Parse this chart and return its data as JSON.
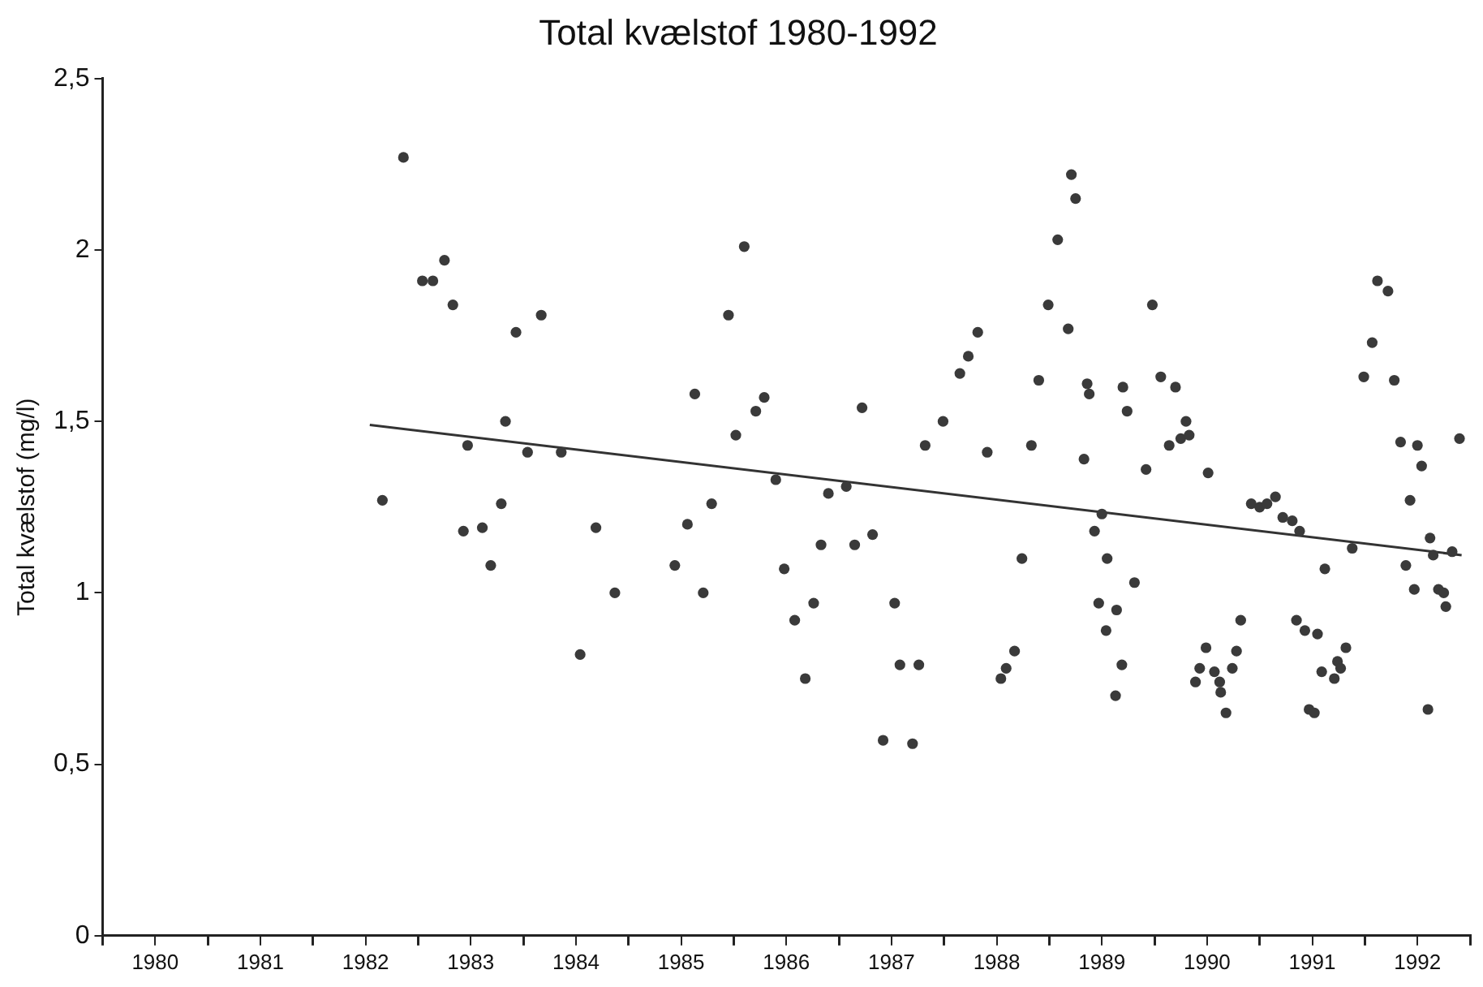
{
  "chart_data": {
    "type": "scatter",
    "title": "Total kvælstof 1980-1992",
    "ylabel": "Total kvælstof (mg/l)",
    "xlim": [
      1980,
      1993
    ],
    "xticks": [
      {
        "value": 1980,
        "label": null
      },
      {
        "value": 1980.5,
        "label": "1980"
      },
      {
        "value": 1981,
        "label": null
      },
      {
        "value": 1981.5,
        "label": "1981"
      },
      {
        "value": 1982,
        "label": null
      },
      {
        "value": 1982.5,
        "label": "1982"
      },
      {
        "value": 1983,
        "label": null
      },
      {
        "value": 1983.5,
        "label": "1983"
      },
      {
        "value": 1984,
        "label": null
      },
      {
        "value": 1984.5,
        "label": "1984"
      },
      {
        "value": 1985,
        "label": null
      },
      {
        "value": 1985.5,
        "label": "1985"
      },
      {
        "value": 1986,
        "label": null
      },
      {
        "value": 1986.5,
        "label": "1986"
      },
      {
        "value": 1987,
        "label": null
      },
      {
        "value": 1987.5,
        "label": "1987"
      },
      {
        "value": 1988,
        "label": null
      },
      {
        "value": 1988.5,
        "label": "1988"
      },
      {
        "value": 1989,
        "label": null
      },
      {
        "value": 1989.5,
        "label": "1989"
      },
      {
        "value": 1990,
        "label": null
      },
      {
        "value": 1990.5,
        "label": "1990"
      },
      {
        "value": 1991,
        "label": null
      },
      {
        "value": 1991.5,
        "label": "1991"
      },
      {
        "value": 1992,
        "label": null
      },
      {
        "value": 1992.5,
        "label": "1992"
      },
      {
        "value": 1993,
        "label": null
      }
    ],
    "ylim": [
      0,
      2.5
    ],
    "yticks": [
      0,
      {
        "value": 0.5,
        "label": "0,5"
      },
      1,
      {
        "value": 1.5,
        "label": "1,5"
      },
      2,
      {
        "value": 2.5,
        "label": "2,5"
      }
    ],
    "grid": false,
    "legend": false,
    "marker": "circle",
    "series": [
      {
        "color": "#3a3a3a",
        "x": [
          1982.66,
          1982.86,
          1983.04,
          1983.14,
          1983.25,
          1983.33,
          1983.43,
          1983.47,
          1983.61,
          1983.69,
          1983.79,
          1983.83,
          1983.93,
          1984.04,
          1984.17,
          1984.36,
          1984.54,
          1984.69,
          1984.87,
          1985.44,
          1985.56,
          1985.63,
          1985.71,
          1985.79,
          1985.95,
          1986.02,
          1986.1,
          1986.21,
          1986.29,
          1986.4,
          1986.48,
          1986.58,
          1986.68,
          1986.76,
          1986.83,
          1986.9,
          1987.07,
          1987.15,
          1987.22,
          1987.32,
          1987.42,
          1987.53,
          1987.58,
          1987.7,
          1987.76,
          1987.82,
          1987.99,
          1988.15,
          1988.23,
          1988.32,
          1988.41,
          1988.54,
          1988.59,
          1988.67,
          1988.74,
          1988.83,
          1988.9,
          1988.99,
          1989.08,
          1989.18,
          1989.21,
          1989.25,
          1989.33,
          1989.36,
          1989.38,
          1989.43,
          1989.5,
          1989.47,
          1989.54,
          1989.55,
          1989.64,
          1989.69,
          1989.63,
          1989.7,
          1989.74,
          1989.81,
          1989.92,
          1989.98,
          1990.06,
          1990.14,
          1990.2,
          1990.25,
          1990.3,
          1990.33,
          1990.39,
          1990.43,
          1990.49,
          1990.51,
          1990.57,
          1990.62,
          1990.63,
          1990.68,
          1990.74,
          1990.78,
          1990.82,
          1990.92,
          1991.0,
          1991.07,
          1991.15,
          1991.22,
          1991.31,
          1991.35,
          1991.38,
          1991.43,
          1991.47,
          1991.52,
          1991.55,
          1991.59,
          1991.62,
          1991.71,
          1991.74,
          1991.77,
          1991.82,
          1991.88,
          1991.99,
          1992.07,
          1992.12,
          1992.22,
          1992.28,
          1992.34,
          1992.39,
          1992.43,
          1992.47,
          1992.5,
          1992.54,
          1992.6,
          1992.62,
          1992.65,
          1992.7,
          1992.75,
          1992.77,
          1992.83,
          1992.9
        ],
        "values": [
          1.27,
          2.27,
          1.91,
          1.91,
          1.97,
          1.84,
          1.18,
          1.43,
          1.19,
          1.08,
          1.26,
          1.5,
          1.76,
          1.41,
          1.81,
          1.41,
          0.82,
          1.19,
          1.0,
          1.08,
          1.2,
          1.58,
          1.0,
          1.26,
          1.81,
          1.46,
          2.01,
          1.53,
          1.57,
          1.33,
          1.07,
          0.92,
          0.75,
          0.97,
          1.14,
          1.29,
          1.31,
          1.14,
          1.54,
          1.17,
          0.57,
          0.97,
          0.79,
          0.56,
          0.79,
          1.43,
          1.5,
          1.64,
          1.69,
          1.76,
          1.41,
          0.75,
          0.78,
          0.83,
          1.1,
          1.43,
          1.62,
          1.84,
          2.03,
          1.77,
          2.22,
          2.15,
          1.39,
          1.61,
          1.58,
          1.18,
          1.23,
          0.97,
          0.89,
          1.1,
          0.95,
          0.79,
          0.7,
          1.6,
          1.53,
          1.03,
          1.36,
          1.84,
          1.63,
          1.43,
          1.6,
          1.45,
          1.5,
          1.46,
          0.74,
          0.78,
          0.84,
          1.35,
          0.77,
          0.74,
          0.71,
          0.65,
          0.78,
          0.83,
          0.92,
          1.26,
          1.25,
          1.26,
          1.28,
          1.22,
          1.21,
          0.92,
          1.18,
          0.89,
          0.66,
          0.65,
          0.88,
          0.77,
          1.07,
          0.75,
          0.8,
          0.78,
          0.84,
          1.13,
          1.63,
          1.73,
          1.91,
          1.88,
          1.62,
          1.44,
          1.08,
          1.27,
          1.01,
          1.43,
          1.37,
          0.66,
          1.16,
          1.11,
          1.01,
          1.0,
          0.96,
          1.12,
          1.45
        ]
      },
      {
        "type": "line",
        "color": "#333333",
        "marker": "none",
        "x": [
          1982.54,
          1992.92
        ],
        "values": [
          1.49,
          1.11
        ]
      }
    ]
  }
}
